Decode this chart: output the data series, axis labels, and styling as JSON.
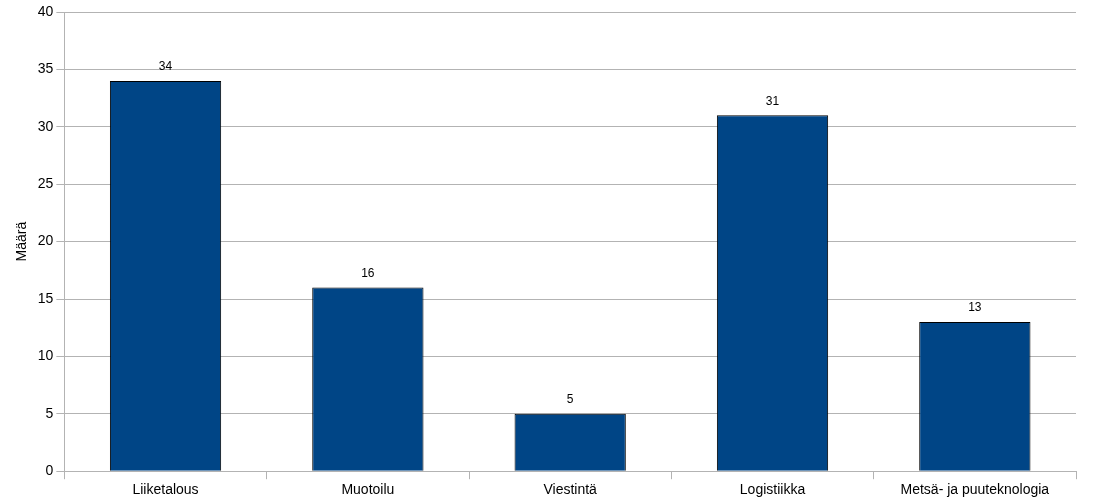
{
  "chart_data": {
    "type": "bar",
    "ylabel": "Määrä",
    "categories": [
      "Liiketalous",
      "Muotoilu",
      "Viestintä",
      "Logistiikka",
      "Metsä- ja puuteknologia"
    ],
    "values": [
      34,
      16,
      5,
      31,
      13
    ],
    "color": "#004586",
    "ylim": [
      0,
      40
    ],
    "yticks": [
      0,
      5,
      10,
      15,
      20,
      25,
      30,
      35,
      40
    ],
    "grid": "y",
    "legend": false,
    "data_labels": true
  }
}
